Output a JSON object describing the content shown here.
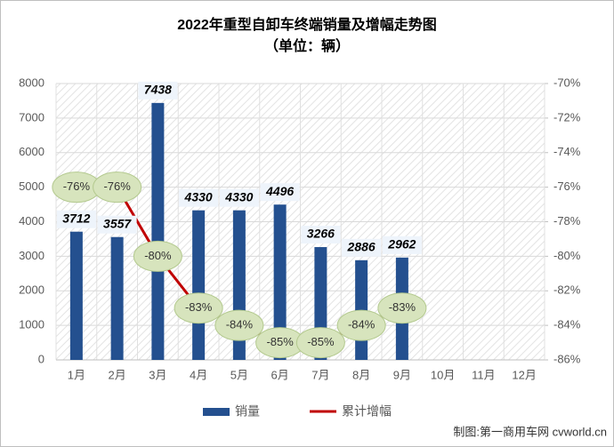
{
  "chart_data": {
    "type": "bar-line",
    "title": "2022年重型自卸车终端销量及增幅走势图",
    "subtitle": "（单位：辆）",
    "categories": [
      "1月",
      "2月",
      "3月",
      "4月",
      "5月",
      "6月",
      "7月",
      "8月",
      "9月",
      "10月",
      "11月",
      "12月"
    ],
    "series": [
      {
        "name": "销量",
        "color": "#24508f",
        "type": "bar",
        "values": [
          3712,
          3557,
          7438,
          4330,
          4330,
          4496,
          3266,
          2886,
          2962,
          null,
          null,
          null
        ]
      },
      {
        "name": "累计增幅",
        "color": "#c00000",
        "type": "line",
        "axis": "y2",
        "values": [
          -76,
          -76,
          -80,
          -83,
          -84,
          -85,
          -85,
          -84,
          -83,
          null,
          null,
          null
        ],
        "value_labels": [
          "-76%",
          "-76%",
          "-80%",
          "-83%",
          "-84%",
          "-85%",
          "-85%",
          "-84%",
          "-83%",
          null,
          null,
          null
        ]
      }
    ],
    "ylim": [
      0,
      8000
    ],
    "yticks": [
      0,
      1000,
      2000,
      3000,
      4000,
      5000,
      6000,
      7000,
      8000
    ],
    "y2lim": [
      -86,
      -70
    ],
    "y2ticks": [
      {
        "value": -86,
        "label": "-86%"
      },
      {
        "value": -84,
        "label": "-84%"
      },
      {
        "value": -82,
        "label": "-82%"
      },
      {
        "value": -80,
        "label": "-80%"
      },
      {
        "value": -78,
        "label": "-78%"
      },
      {
        "value": -76,
        "label": "-76%"
      },
      {
        "value": -74,
        "label": "-74%"
      },
      {
        "value": -72,
        "label": "-72%"
      },
      {
        "value": -70,
        "label": "-70%"
      }
    ],
    "grid": true,
    "legend": "bottom",
    "source": "制图:第一商用车网 cvworld.cn"
  }
}
